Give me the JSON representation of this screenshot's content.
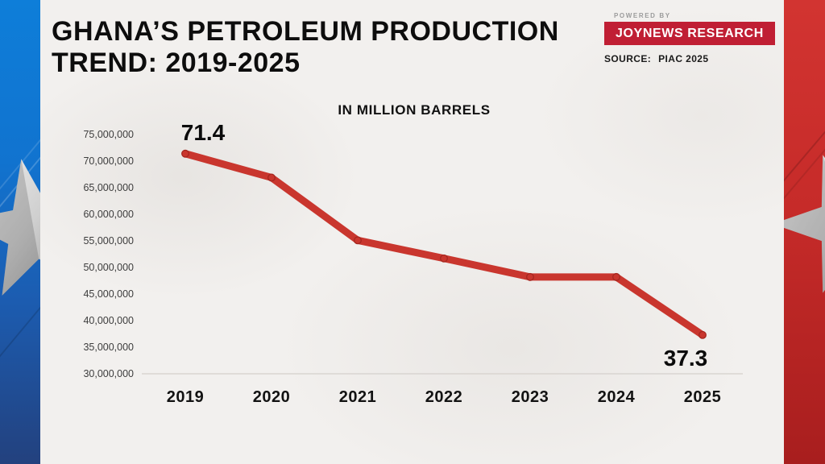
{
  "header": {
    "title_line1": "GHANA’S PETROLEUM PRODUCTION",
    "title_line2": "TREND: 2019-2025",
    "powered_by": "POWERED BY",
    "brand": "JOYNEWS RESEARCH",
    "source_label": "SOURCE:",
    "source_value": "PIAC 2025"
  },
  "chart_data": {
    "type": "line",
    "title": "IN MILLION BARRELS",
    "categories": [
      "2019",
      "2020",
      "2021",
      "2022",
      "2023",
      "2024",
      "2025"
    ],
    "values": [
      71400000,
      66900000,
      55100000,
      51700000,
      48200000,
      48200000,
      37300000
    ],
    "values_in_million_barrels": [
      71.4,
      66.9,
      55.1,
      51.7,
      48.2,
      48.2,
      37.3
    ],
    "point_labels": [
      {
        "category": "2019",
        "text": "71.4",
        "position": "above"
      },
      {
        "category": "2025",
        "text": "37.3",
        "position": "below"
      }
    ],
    "y_ticks": [
      "75,000,000",
      "70,000,000",
      "65,000,000",
      "60,000,000",
      "55,000,000",
      "50,000,000",
      "45,000,000",
      "40,000,000",
      "35,000,000",
      "30,000,000"
    ],
    "ylim": [
      30000000,
      75000000
    ],
    "grid": "baseline-only",
    "legend": "none",
    "line_color": "#c9362e",
    "marker_stroke_color": "#a5261f"
  },
  "colors": {
    "background": "#f2f0ee",
    "title_text": "#0d0d0d",
    "badge_red": "#c01f34",
    "badge_blue_bar": "#2b52b0",
    "left_strip_top": "#0e7ed9",
    "left_strip_bottom": "#23417e",
    "right_strip_top": "#d23431",
    "right_strip_bottom": "#a81e1e",
    "axis_text": "#3d3d3d",
    "star_silver": "#d9d9d9"
  }
}
